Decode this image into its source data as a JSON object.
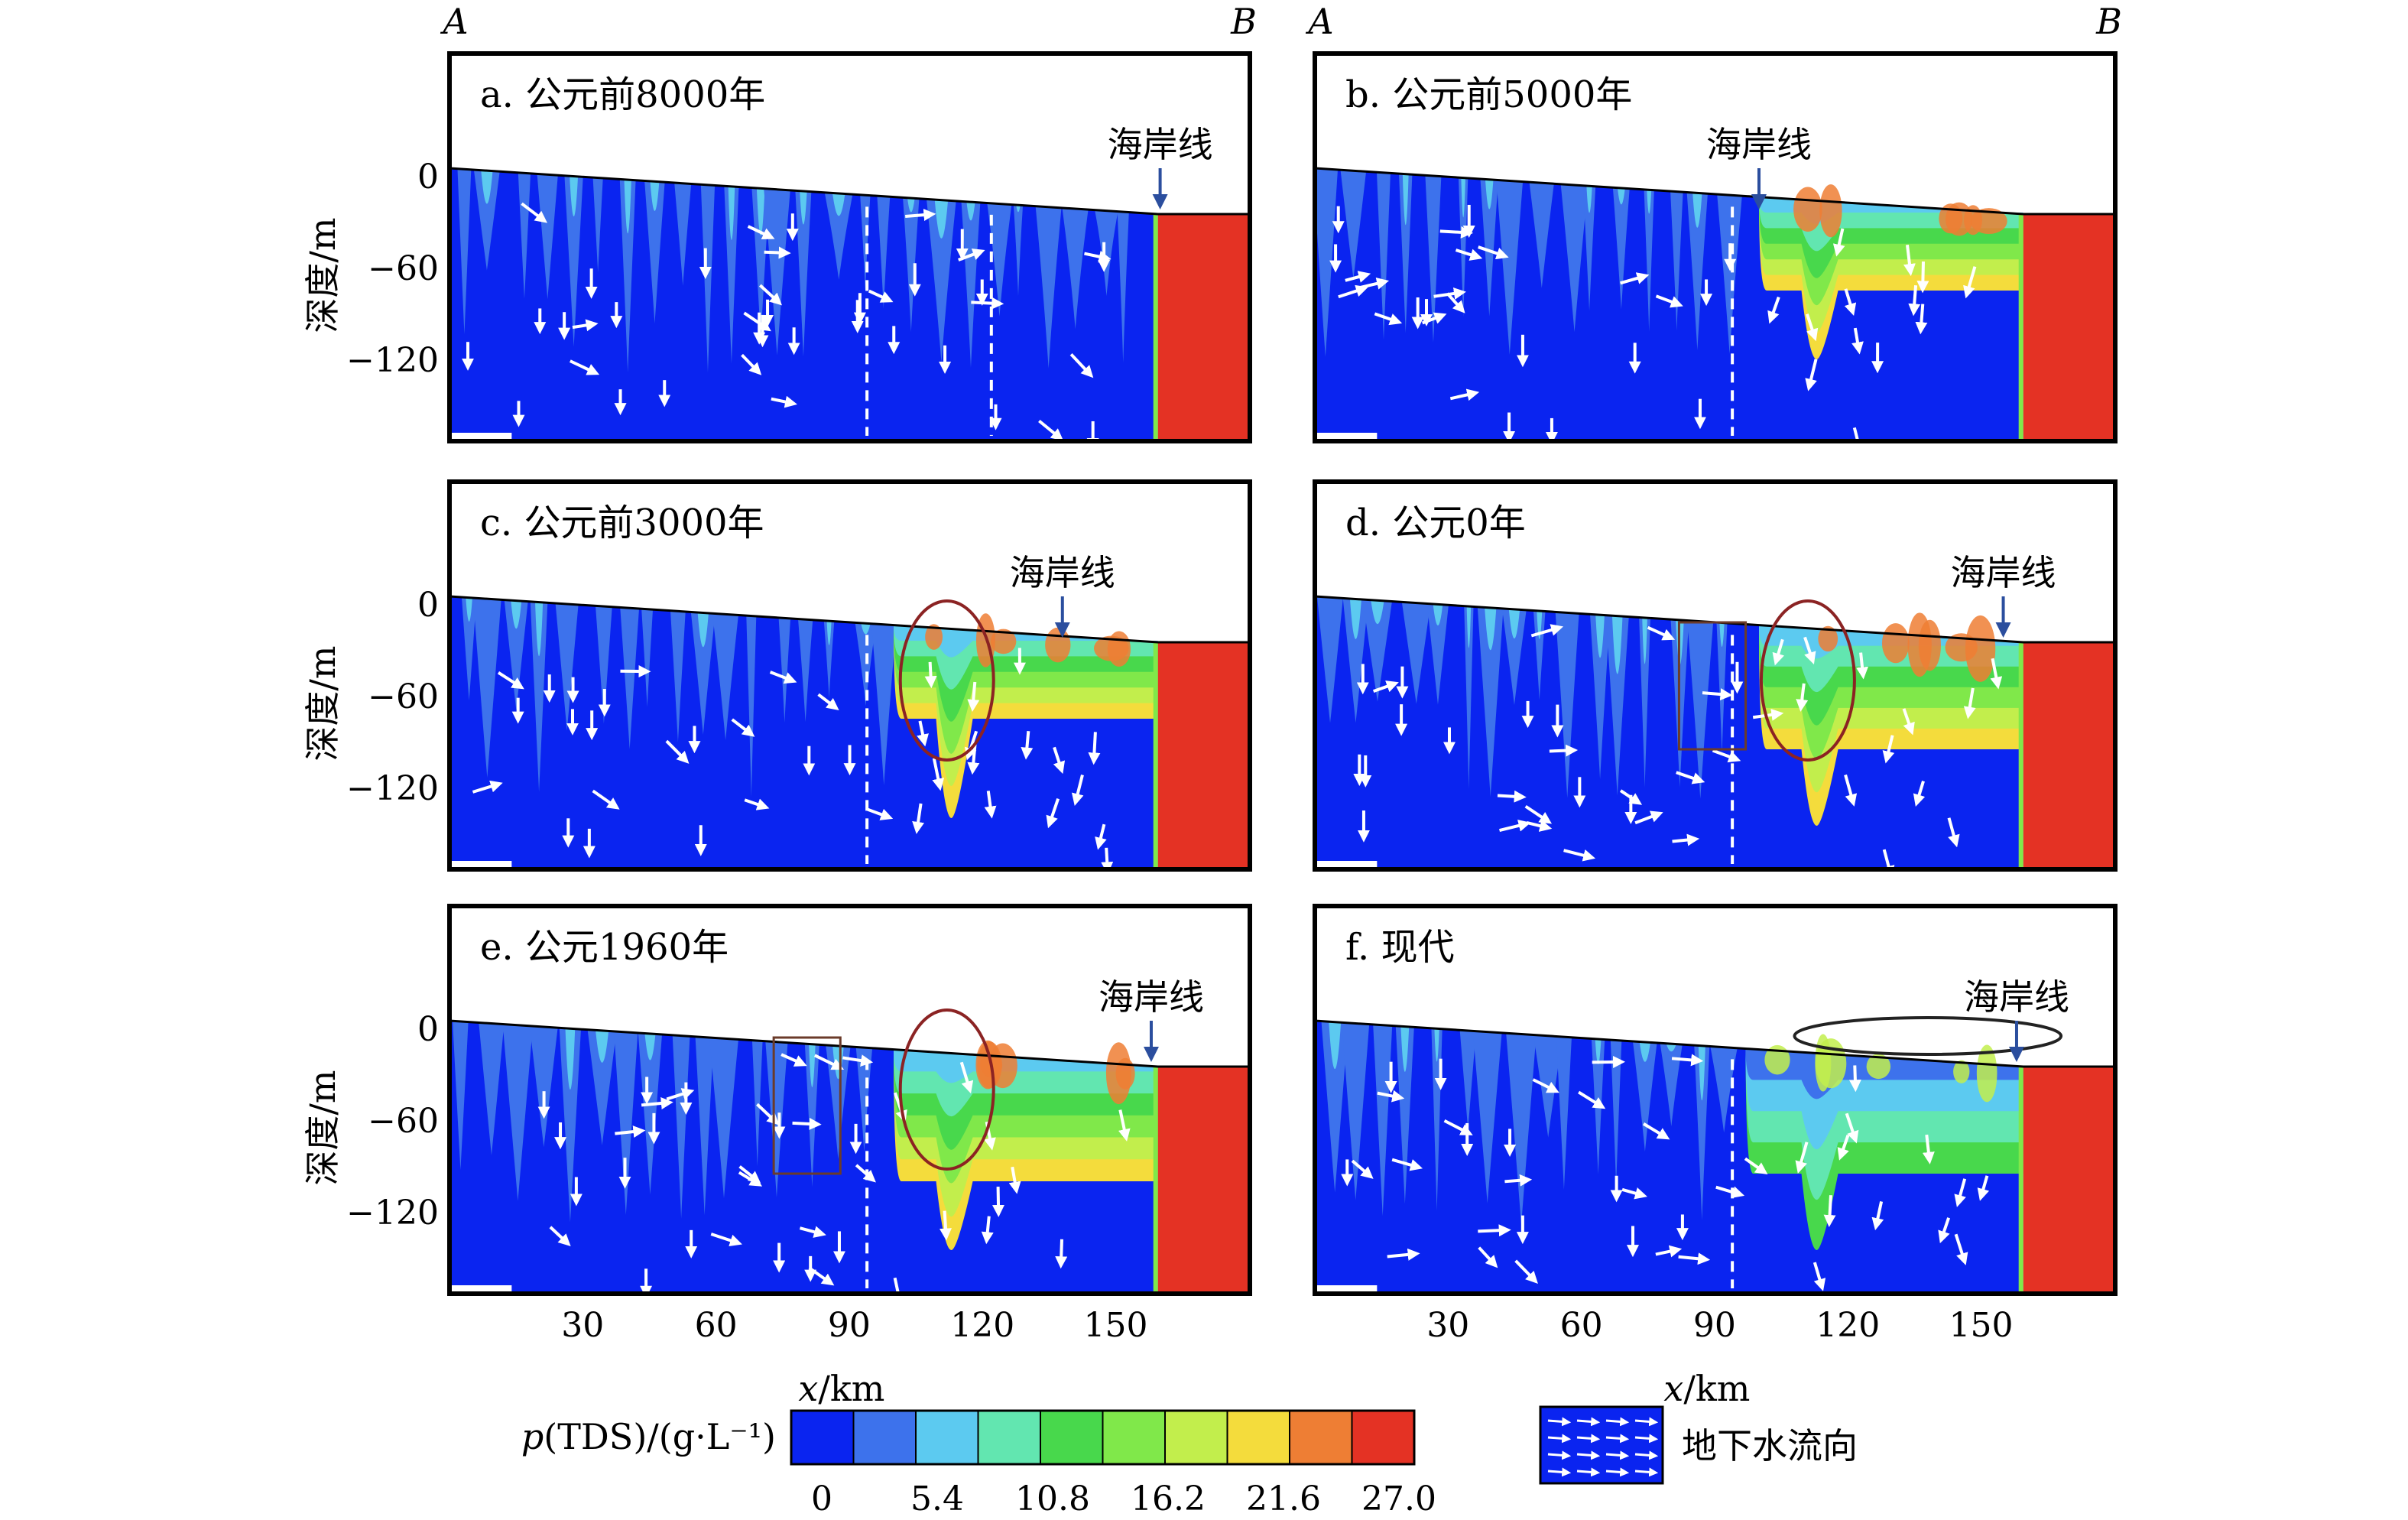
{
  "figure": {
    "endpoint_left": "A",
    "endpoint_right": "B",
    "ylabel": "深度/m",
    "xlabel_var": "x",
    "xlabel_unit": "/km",
    "coastline_label": "海岸线",
    "legend_flow_label": "地下水流向"
  },
  "colorbar": {
    "label_prefix": "p",
    "label_rest": "(TDS)/(g·L⁻¹)",
    "tick_labels": [
      "0",
      "5.4",
      "10.8",
      "16.2",
      "21.6",
      "27.0"
    ],
    "tick_values": [
      0,
      5.4,
      10.8,
      16.2,
      21.6,
      27.0
    ],
    "colors": [
      "#0a24f0",
      "#3d72ec",
      "#5ccaf0",
      "#62e6b0",
      "#48d84c",
      "#80e84a",
      "#c2ee4c",
      "#f4dc3c",
      "#ee7e34",
      "#e43224"
    ]
  },
  "chart_data": [
    {
      "type": "heatmap",
      "panel": "a",
      "title": "a. 公元前8000年",
      "coastline_km": 160,
      "xlim": [
        0,
        180
      ],
      "ylim": [
        -180,
        60
      ],
      "yticks": [
        0,
        -60,
        -120
      ],
      "yticklabels": [
        "0",
        "−60",
        "−120"
      ],
      "xticks": [
        30,
        60,
        90,
        120,
        150
      ],
      "xticklabels": [
        "30",
        "60",
        "90",
        "120",
        "150"
      ],
      "show_xticks": false,
      "show_ends": true,
      "saline_wedge": null,
      "ellipse": null,
      "rect": null
    },
    {
      "type": "heatmap",
      "panel": "b",
      "title": "b. 公元前5000年",
      "coastline_km": 100,
      "xlim": [
        0,
        180
      ],
      "ylim": [
        -180,
        60
      ],
      "yticks": [
        0,
        -60,
        -120
      ],
      "yticklabels": [
        "0",
        "−60",
        "−120"
      ],
      "xticks": [
        30,
        60,
        90,
        120,
        150
      ],
      "xticklabels": [
        "30",
        "60",
        "90",
        "120",
        "150"
      ],
      "show_xticks": false,
      "show_ends": true,
      "saline_wedge": {
        "x_start_km": 100,
        "x_end_km": 160,
        "base_depth_m": -75,
        "finger_km": 113,
        "finger_depth_m": -120
      },
      "ellipse": null,
      "rect": null
    },
    {
      "type": "heatmap",
      "panel": "c",
      "title": "c. 公元前3000年",
      "coastline_km": 138,
      "xlim": [
        0,
        180
      ],
      "ylim": [
        -180,
        60
      ],
      "yticks": [
        0,
        -60,
        -120
      ],
      "yticklabels": [
        "0",
        "−60",
        "−120"
      ],
      "xticks": [
        30,
        60,
        90,
        120,
        150
      ],
      "xticklabels": [
        "30",
        "60",
        "90",
        "120",
        "150"
      ],
      "show_xticks": false,
      "show_ends": false,
      "saline_wedge": {
        "x_start_km": 100,
        "x_end_km": 160,
        "base_depth_m": -75,
        "finger_km": 113,
        "finger_depth_m": -140
      },
      "ellipse": {
        "cx_km": 112,
        "cy_m": -50,
        "rx_km": 3.5,
        "ry_m": 52,
        "color": "#8b2323"
      },
      "rect": null
    },
    {
      "type": "heatmap",
      "panel": "d",
      "title": "d. 公元0年",
      "coastline_km": 155,
      "xlim": [
        0,
        180
      ],
      "ylim": [
        -180,
        60
      ],
      "yticks": [
        0,
        -60,
        -120
      ],
      "yticklabels": [
        "0",
        "−60",
        "−120"
      ],
      "xticks": [
        30,
        60,
        90,
        120,
        150
      ],
      "xticklabels": [
        "30",
        "60",
        "90",
        "120",
        "150"
      ],
      "show_xticks": false,
      "show_ends": false,
      "saline_wedge": {
        "x_start_km": 100,
        "x_end_km": 160,
        "base_depth_m": -95,
        "finger_km": 113,
        "finger_depth_m": -145
      },
      "ellipse": {
        "cx_km": 111,
        "cy_m": -50,
        "rx_km": 3.5,
        "ry_m": 52,
        "color": "#8b2323"
      },
      "rect": {
        "x0_km": 82,
        "x1_km": 97,
        "y0_m": -12,
        "y1_m": -95,
        "color": "#6b3b2a"
      }
    },
    {
      "type": "heatmap",
      "panel": "e",
      "title": "e. 公元1960年",
      "coastline_km": 158,
      "xlim": [
        0,
        180
      ],
      "ylim": [
        -180,
        60
      ],
      "yticks": [
        0,
        -60,
        -120
      ],
      "yticklabels": [
        "0",
        "−60",
        "−120"
      ],
      "xticks": [
        30,
        60,
        90,
        120,
        150
      ],
      "xticklabels": [
        "30",
        "60",
        "90",
        "120",
        "150"
      ],
      "show_xticks": true,
      "show_ends": false,
      "saline_wedge": {
        "x_start_km": 100,
        "x_end_km": 160,
        "base_depth_m": -100,
        "finger_km": 113,
        "finger_depth_m": -145
      },
      "ellipse": {
        "cx_km": 112,
        "cy_m": -40,
        "rx_km": 3.5,
        "ry_m": 52,
        "color": "#8b2323"
      },
      "rect": {
        "x0_km": 73,
        "x1_km": 88,
        "y0_m": -6,
        "y1_m": -95,
        "color": "#6b3b2a"
      }
    },
    {
      "type": "heatmap",
      "panel": "f",
      "title": "f. 现代",
      "coastline_km": 158,
      "xlim": [
        0,
        180
      ],
      "ylim": [
        -180,
        60
      ],
      "yticks": [
        0,
        -60,
        -120
      ],
      "yticklabels": [
        "0",
        "−60",
        "−120"
      ],
      "xticks": [
        30,
        60,
        90,
        120,
        150
      ],
      "xticklabels": [
        "30",
        "60",
        "90",
        "120",
        "150"
      ],
      "show_xticks": true,
      "show_ends": false,
      "saline_wedge": {
        "x_start_km": 97,
        "x_end_km": 160,
        "base_depth_m": -95,
        "finger_km": 113,
        "finger_depth_m": -145,
        "mixed": true
      },
      "ellipse": {
        "cx_km": 138,
        "cy_m": -5,
        "rx_km": 10,
        "ry_m": 12,
        "color": "#222222"
      },
      "rect": null
    }
  ]
}
